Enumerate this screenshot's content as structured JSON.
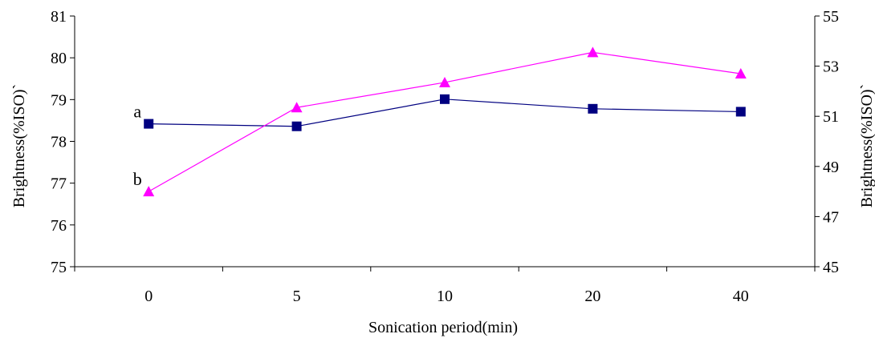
{
  "chart_data": {
    "type": "line",
    "categories": [
      "0",
      "5",
      "10",
      "20",
      "40"
    ],
    "xlabel": "Sonication period(min)",
    "ylabel_left": "Brightness(%ISO)`",
    "ylabel_right": "Brightness(%ISO)`",
    "y_left": {
      "lim": [
        75,
        81
      ],
      "ticks": [
        75,
        76,
        77,
        78,
        79,
        80,
        81
      ]
    },
    "y_right": {
      "lim": [
        45,
        55
      ],
      "ticks": [
        45,
        47,
        49,
        51,
        53,
        55
      ]
    },
    "series": [
      {
        "axis": "left",
        "marker": "square",
        "color": "#000080",
        "values": [
          78.42,
          78.36,
          79.01,
          78.78,
          78.71
        ]
      },
      {
        "axis": "right",
        "marker": "triangle",
        "color": "#ff00ff",
        "values": [
          48.0,
          51.35,
          52.35,
          53.55,
          52.7
        ]
      }
    ],
    "annotations": [
      {
        "text": "a",
        "series_index": 0,
        "point_index": 0
      },
      {
        "text": "b",
        "series_index": 1,
        "point_index": 0
      }
    ],
    "grid": false,
    "legend": "none"
  }
}
